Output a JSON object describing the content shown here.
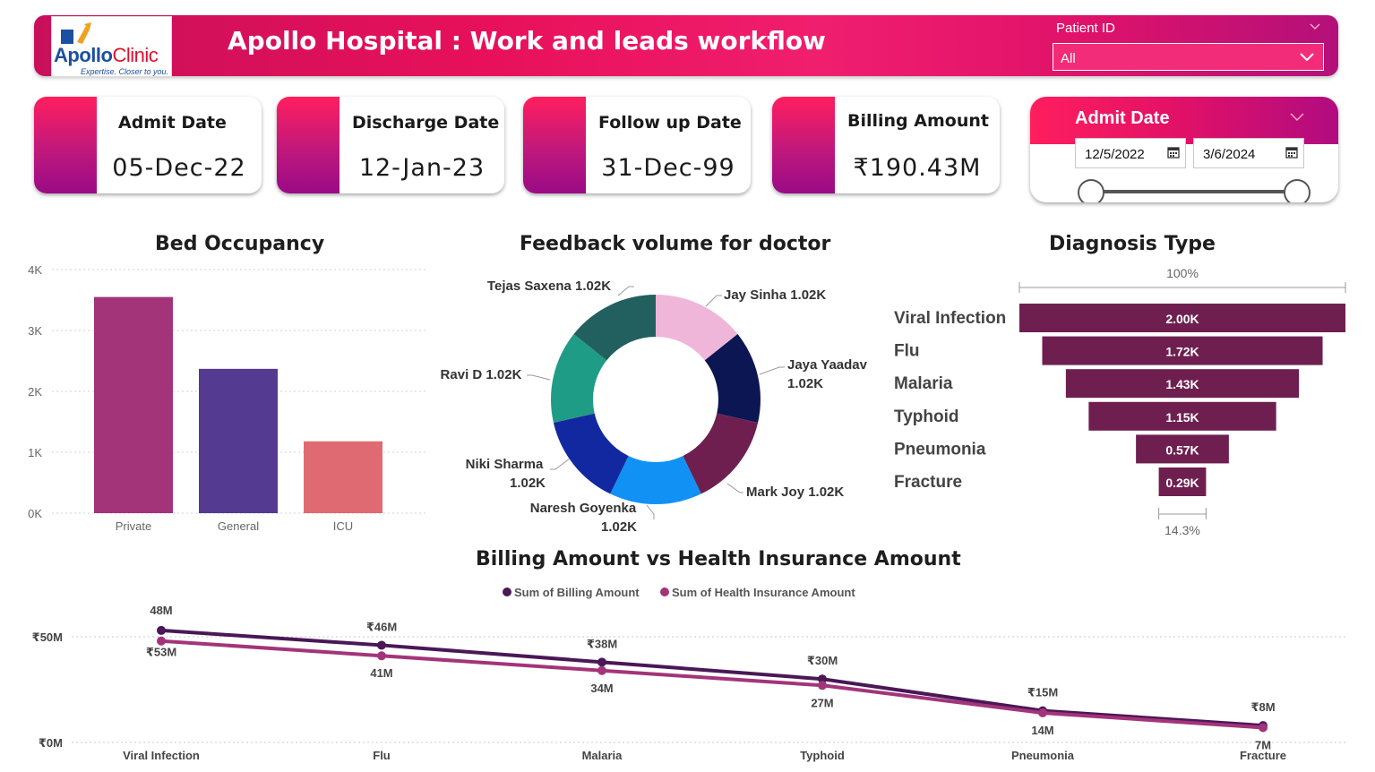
{
  "header": {
    "logo_brand": "Apollo",
    "logo_brand2": "Clinic",
    "logo_tagline": "Expertise. Closer to you.",
    "title": "Apollo Hospital : Work and leads workflow",
    "patient_id_label": "Patient ID",
    "patient_id_value": "All"
  },
  "kpis": [
    {
      "label": "Admit Date",
      "value": "05-Dec-22"
    },
    {
      "label": "Discharge Date",
      "value": "12-Jan-23"
    },
    {
      "label": "Follow up Date",
      "value": "31-Dec-99"
    },
    {
      "label": "Billing Amount",
      "value": "₹190.43M"
    }
  ],
  "admit_slicer": {
    "title": "Admit Date",
    "start": "12/5/2022",
    "end": "3/6/2024",
    "range_start_fraction": 0,
    "range_end_fraction": 1
  },
  "colors": {
    "header_pink": "#e8105a",
    "bar_private": "#a3347a",
    "bar_general": "#553a92",
    "bar_icu": "#e06a72",
    "funnel": "#6e1f4f",
    "billing_line": "#4a1757",
    "insurance_line": "#a3347a"
  },
  "chart_data": [
    {
      "type": "bar",
      "title": "Bed Occupancy",
      "categories": [
        "Private",
        "General",
        "ICU"
      ],
      "values": [
        3550,
        2370,
        1180
      ],
      "ylim": [
        0,
        4000
      ],
      "ytick_labels": [
        "0K",
        "1K",
        "2K",
        "3K",
        "4K"
      ],
      "yticks": [
        0,
        1000,
        2000,
        3000,
        4000
      ],
      "grid": true
    },
    {
      "type": "pie",
      "title": "Feedback volume for doctor",
      "donut": true,
      "slices": [
        {
          "name": "Jay Sinha",
          "value": 1020,
          "label": "Jay Sinha 1.02K",
          "color": "#efb6da"
        },
        {
          "name": "Jaya Yaadav",
          "value": 1020,
          "label": "Jaya Yaadav 1.02K",
          "color": "#0b1652"
        },
        {
          "name": "Mark Joy",
          "value": 1020,
          "label": "Mark Joy 1.02K",
          "color": "#6e1f4f"
        },
        {
          "name": "Naresh Goyenka",
          "value": 1020,
          "label": "Naresh Goyenka 1.02K",
          "color": "#1291f4"
        },
        {
          "name": "Niki Sharma",
          "value": 1020,
          "label": "Niki Sharma 1.02K",
          "color": "#1228a0"
        },
        {
          "name": "Ravi D",
          "value": 1020,
          "label": "Ravi D 1.02K",
          "color": "#1f9c86"
        },
        {
          "name": "Tejas Saxena",
          "value": 1020,
          "label": "Tejas Saxena 1.02K",
          "color": "#226060"
        }
      ]
    },
    {
      "type": "bar",
      "subtype": "funnel",
      "title": "Diagnosis Type",
      "categories": [
        "Viral Infection",
        "Flu",
        "Malaria",
        "Typhoid",
        "Pneumonia",
        "Fracture"
      ],
      "values": [
        2000,
        1720,
        1430,
        1150,
        570,
        290
      ],
      "data_labels": [
        "2.00K",
        "1.72K",
        "1.43K",
        "1.15K",
        "0.57K",
        "0.29K"
      ],
      "top_percent_label": "100%",
      "bottom_percent_label": "14.3%"
    },
    {
      "type": "line",
      "title": "Billing Amount vs Health Insurance Amount",
      "categories": [
        "Viral Infection",
        "Flu",
        "Malaria",
        "Typhoid",
        "Pneumonia",
        "Fracture"
      ],
      "ylim": [
        0,
        60
      ],
      "ytick_labels": [
        "₹0M",
        "₹50M"
      ],
      "yticks": [
        0,
        50
      ],
      "legend_position": "top",
      "grid": true,
      "series": [
        {
          "name": "Sum of Billing Amount",
          "values": [
            53,
            46,
            38,
            30,
            15,
            8
          ],
          "labels": [
            "₹53M",
            "₹46M",
            "₹38M",
            "₹30M",
            "₹15M",
            "₹8M"
          ]
        },
        {
          "name": "Sum of Health Insurance Amount",
          "values": [
            48,
            41,
            34,
            27,
            14,
            7
          ],
          "labels": [
            "48M",
            "41M",
            "34M",
            "27M",
            "14M",
            "7M"
          ]
        }
      ]
    }
  ]
}
